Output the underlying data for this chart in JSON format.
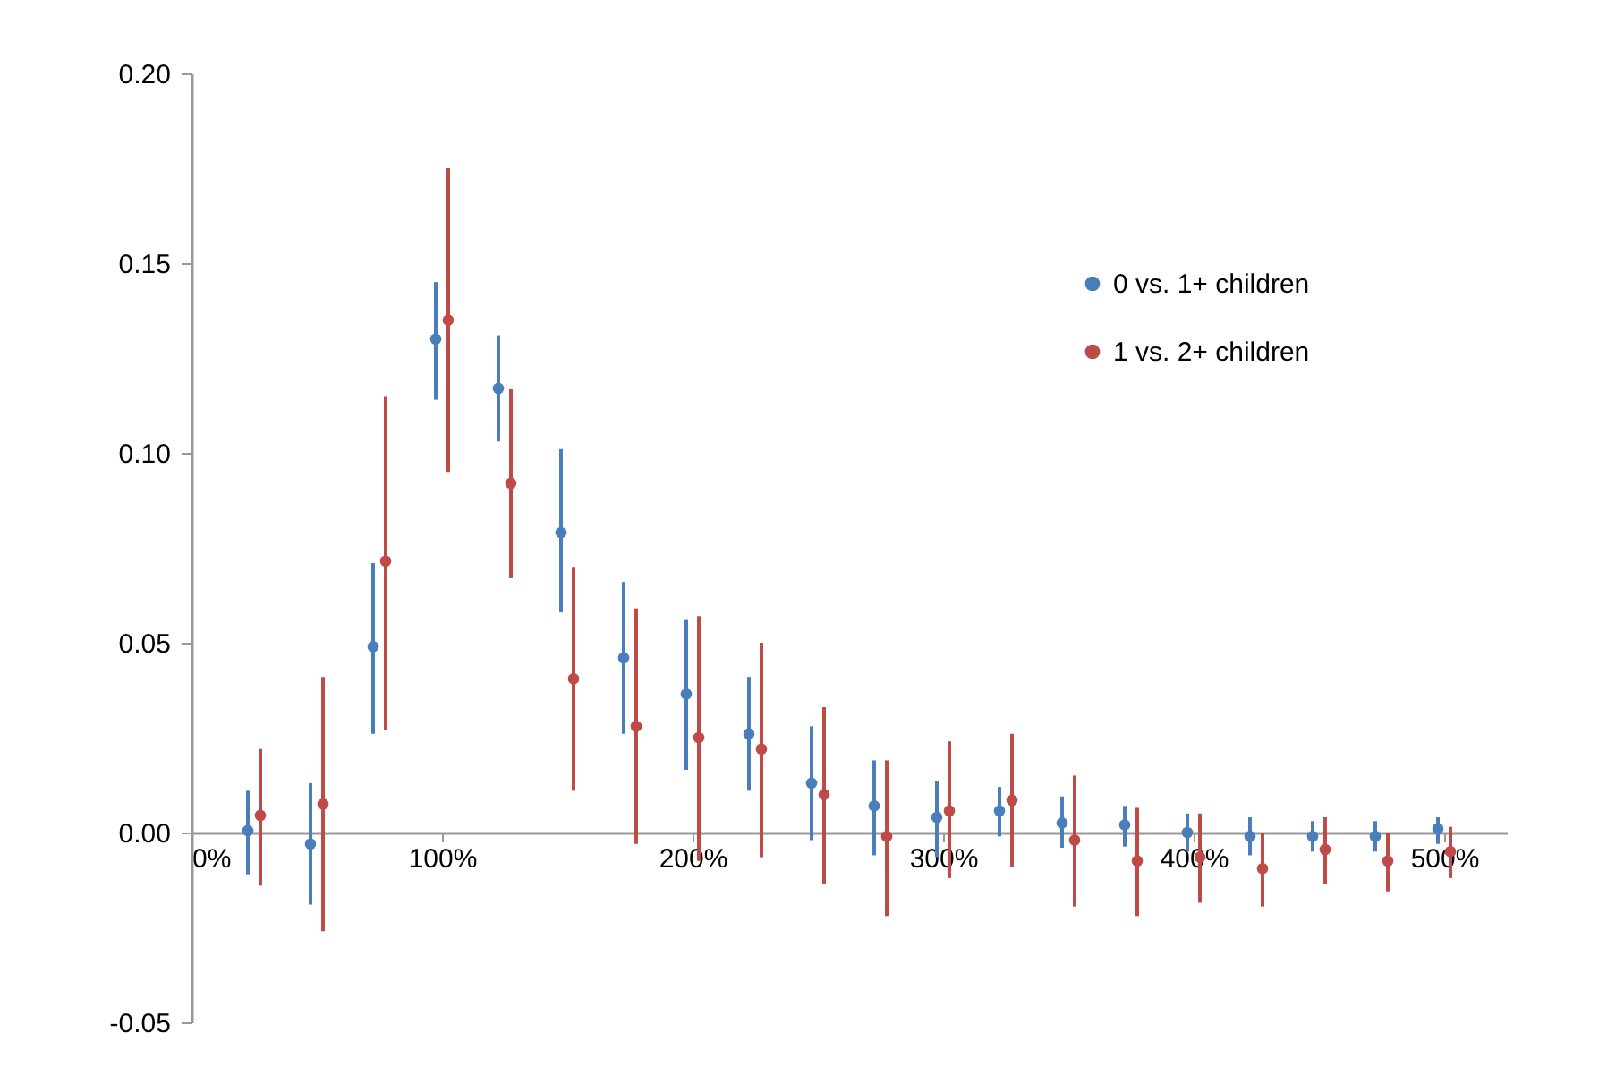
{
  "chart_data": {
    "type": "scatter",
    "xlim": [
      0,
      525
    ],
    "xticks": [
      {
        "value": 0,
        "label": "0%"
      },
      {
        "value": 100,
        "label": "100%"
      },
      {
        "value": 200,
        "label": "200%"
      },
      {
        "value": 300,
        "label": "300%"
      },
      {
        "value": 400,
        "label": "400%"
      },
      {
        "value": 500,
        "label": "500%"
      }
    ],
    "ylim": [
      -0.05,
      0.2
    ],
    "yticks": [
      {
        "value": -0.05,
        "label": "-0.05"
      },
      {
        "value": 0,
        "label": "0.00"
      },
      {
        "value": 0.05,
        "label": "0.05"
      },
      {
        "value": 0.1,
        "label": "0.10"
      },
      {
        "value": 0.15,
        "label": "0.15"
      },
      {
        "value": 0.2,
        "label": "0.20"
      }
    ],
    "grid": false,
    "legend": "top right",
    "marker": "circle",
    "series": [
      {
        "name": "0 vs. 1+ children",
        "color": "#4a7ebb",
        "x": [
          22.5,
          47.5,
          72.5,
          97.5,
          122.5,
          147.5,
          172.5,
          197.5,
          222.5,
          247.5,
          272.5,
          297.5,
          322.5,
          347.5,
          372.5,
          397.5,
          422.5,
          447.5,
          472.5,
          497.5
        ],
        "values": [
          0.0005,
          -0.003,
          0.049,
          0.13,
          0.117,
          0.079,
          0.046,
          0.0365,
          0.026,
          0.013,
          0.007,
          0.004,
          0.0057,
          0.0025,
          0.002,
          0,
          -0.001,
          -0.001,
          -0.001,
          0.001
        ],
        "errors": [
          [
            -0.011,
            0.011
          ],
          [
            -0.019,
            0.013
          ],
          [
            0.026,
            0.071
          ],
          [
            0.114,
            0.145
          ],
          [
            0.103,
            0.131
          ],
          [
            0.058,
            0.101
          ],
          [
            0.026,
            0.066
          ],
          [
            0.0165,
            0.056
          ],
          [
            0.011,
            0.041
          ],
          [
            -0.002,
            0.028
          ],
          [
            -0.006,
            0.019
          ],
          [
            -0.0065,
            0.0135
          ],
          [
            -0.001,
            0.012
          ],
          [
            -0.004,
            0.0095
          ],
          [
            -0.0037,
            0.007
          ],
          [
            -0.005,
            0.005
          ],
          [
            -0.006,
            0.004
          ],
          [
            -0.005,
            0.003
          ],
          [
            -0.005,
            0.003
          ],
          [
            -0.003,
            0.004
          ]
        ]
      },
      {
        "name": "1 vs. 2+ children",
        "color": "#be4b48",
        "x": [
          27.5,
          52.5,
          77.5,
          102.5,
          127.5,
          152.5,
          177.5,
          202.5,
          227.5,
          252.5,
          277.5,
          302.5,
          327.5,
          352.5,
          377.5,
          402.5,
          427.5,
          452.5,
          477.5,
          502.5
        ],
        "values": [
          0.0045,
          0.0075,
          0.0715,
          0.135,
          0.092,
          0.0405,
          0.028,
          0.025,
          0.022,
          0.01,
          -0.001,
          0.0057,
          0.0085,
          -0.002,
          -0.0075,
          -0.0065,
          -0.0095,
          -0.0045,
          -0.0075,
          -0.005
        ],
        "errors": [
          [
            -0.014,
            0.022
          ],
          [
            -0.026,
            0.041
          ],
          [
            0.027,
            0.115
          ],
          [
            0.095,
            0.175
          ],
          [
            0.067,
            0.117
          ],
          [
            0.011,
            0.07
          ],
          [
            -0.003,
            0.059
          ],
          [
            -0.0075,
            0.057
          ],
          [
            -0.0065,
            0.05
          ],
          [
            -0.0135,
            0.033
          ],
          [
            -0.022,
            0.019
          ],
          [
            -0.012,
            0.024
          ],
          [
            -0.009,
            0.026
          ],
          [
            -0.0195,
            0.015
          ],
          [
            -0.022,
            0.0065
          ],
          [
            -0.0185,
            0.005
          ],
          [
            -0.0195,
            0
          ],
          [
            -0.0135,
            0.004
          ],
          [
            -0.0155,
            0
          ],
          [
            -0.012,
            0.0015
          ]
        ]
      }
    ]
  }
}
